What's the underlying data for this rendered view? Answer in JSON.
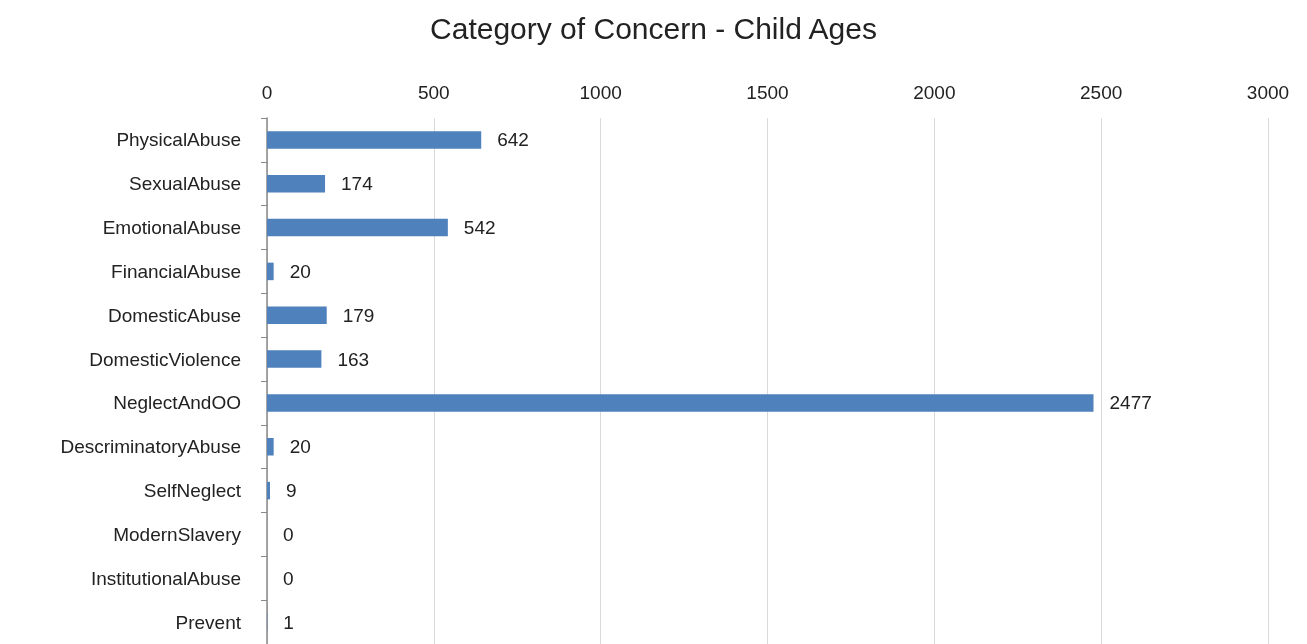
{
  "chart_data": {
    "type": "bar",
    "orientation": "horizontal",
    "title": "Category of Concern - Child Ages",
    "categories": [
      "PhysicalAbuse",
      "SexualAbuse",
      "EmotionalAbuse",
      "FinancialAbuse",
      "DomesticAbuse",
      "DomesticViolence",
      "NeglectAndOO",
      "DescriminatoryAbuse",
      "SelfNeglect",
      "ModernSlavery",
      "InstitutionalAbuse",
      "Prevent"
    ],
    "values": [
      642,
      174,
      542,
      20,
      179,
      163,
      2477,
      20,
      9,
      0,
      0,
      1
    ],
    "color": "#4f81bd",
    "xlim": [
      0,
      3000
    ],
    "xticks": [
      0,
      500,
      1000,
      1500,
      2000,
      2500,
      3000
    ],
    "grid": "x",
    "data_labels": true
  }
}
